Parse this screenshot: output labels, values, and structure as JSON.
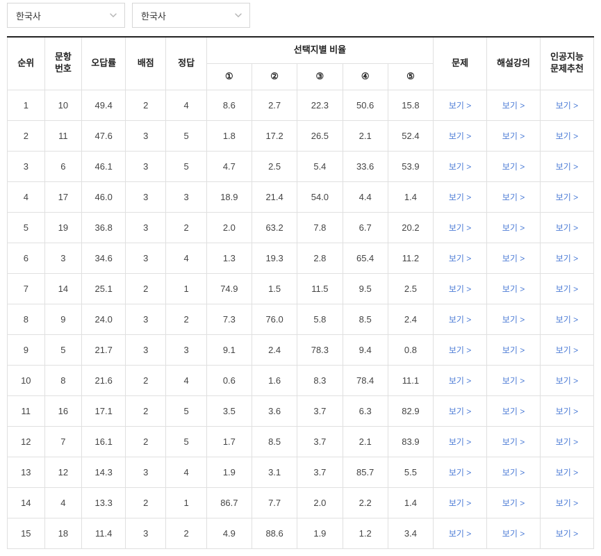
{
  "selects": [
    {
      "label": "한국사"
    },
    {
      "label": "한국사"
    }
  ],
  "linkText": "보기 >",
  "columns": {
    "rank": "순위",
    "questionNo": "문항\n번호",
    "errorRate": "오답률",
    "points": "배점",
    "answer": "정답",
    "ratioGroup": "선택지별 비율",
    "ratios": [
      "①",
      "②",
      "③",
      "④",
      "⑤"
    ],
    "problem": "문제",
    "lecture": "해설강의",
    "aiRec": "인공지능\n문제추천"
  },
  "rows": [
    {
      "rank": 1,
      "qno": 10,
      "err": "49.4",
      "pts": 2,
      "ans": 4,
      "r": [
        "8.6",
        "2.7",
        "22.3",
        "50.6",
        "15.8"
      ]
    },
    {
      "rank": 2,
      "qno": 11,
      "err": "47.6",
      "pts": 3,
      "ans": 5,
      "r": [
        "1.8",
        "17.2",
        "26.5",
        "2.1",
        "52.4"
      ]
    },
    {
      "rank": 3,
      "qno": 6,
      "err": "46.1",
      "pts": 3,
      "ans": 5,
      "r": [
        "4.7",
        "2.5",
        "5.4",
        "33.6",
        "53.9"
      ]
    },
    {
      "rank": 4,
      "qno": 17,
      "err": "46.0",
      "pts": 3,
      "ans": 3,
      "r": [
        "18.9",
        "21.4",
        "54.0",
        "4.4",
        "1.4"
      ]
    },
    {
      "rank": 5,
      "qno": 19,
      "err": "36.8",
      "pts": 3,
      "ans": 2,
      "r": [
        "2.0",
        "63.2",
        "7.8",
        "6.7",
        "20.2"
      ]
    },
    {
      "rank": 6,
      "qno": 3,
      "err": "34.6",
      "pts": 3,
      "ans": 4,
      "r": [
        "1.3",
        "19.3",
        "2.8",
        "65.4",
        "11.2"
      ]
    },
    {
      "rank": 7,
      "qno": 14,
      "err": "25.1",
      "pts": 2,
      "ans": 1,
      "r": [
        "74.9",
        "1.5",
        "11.5",
        "9.5",
        "2.5"
      ]
    },
    {
      "rank": 8,
      "qno": 9,
      "err": "24.0",
      "pts": 3,
      "ans": 2,
      "r": [
        "7.3",
        "76.0",
        "5.8",
        "8.5",
        "2.4"
      ]
    },
    {
      "rank": 9,
      "qno": 5,
      "err": "21.7",
      "pts": 3,
      "ans": 3,
      "r": [
        "9.1",
        "2.4",
        "78.3",
        "9.4",
        "0.8"
      ]
    },
    {
      "rank": 10,
      "qno": 8,
      "err": "21.6",
      "pts": 2,
      "ans": 4,
      "r": [
        "0.6",
        "1.6",
        "8.3",
        "78.4",
        "11.1"
      ]
    },
    {
      "rank": 11,
      "qno": 16,
      "err": "17.1",
      "pts": 2,
      "ans": 5,
      "r": [
        "3.5",
        "3.6",
        "3.7",
        "6.3",
        "82.9"
      ]
    },
    {
      "rank": 12,
      "qno": 7,
      "err": "16.1",
      "pts": 2,
      "ans": 5,
      "r": [
        "1.7",
        "8.5",
        "3.7",
        "2.1",
        "83.9"
      ]
    },
    {
      "rank": 13,
      "qno": 12,
      "err": "14.3",
      "pts": 3,
      "ans": 4,
      "r": [
        "1.9",
        "3.1",
        "3.7",
        "85.7",
        "5.5"
      ]
    },
    {
      "rank": 14,
      "qno": 4,
      "err": "13.3",
      "pts": 2,
      "ans": 1,
      "r": [
        "86.7",
        "7.7",
        "2.0",
        "2.2",
        "1.4"
      ]
    },
    {
      "rank": 15,
      "qno": 18,
      "err": "11.4",
      "pts": 3,
      "ans": 2,
      "r": [
        "4.9",
        "88.6",
        "1.9",
        "1.2",
        "3.4"
      ]
    }
  ]
}
